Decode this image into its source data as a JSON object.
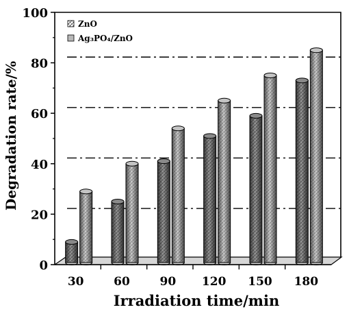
{
  "chart_data": {
    "type": "bar",
    "categories": [
      "30",
      "60",
      "90",
      "120",
      "150",
      "180"
    ],
    "series": [
      {
        "name": "ZnO",
        "values": [
          9,
          25,
          41,
          51,
          59,
          73
        ]
      },
      {
        "name": "Ag₃PO₄/ZnO",
        "values": [
          29,
          40,
          54,
          65,
          75,
          85
        ]
      }
    ],
    "xlabel": "Irradiation time/min",
    "ylabel": "Degradation rate/%",
    "ylim": [
      0,
      100
    ],
    "yticks": [
      "0",
      "20",
      "40",
      "60",
      "80",
      "100"
    ],
    "grid_dashdot_values": [
      22,
      42,
      62,
      82
    ],
    "legend_position": "top-left",
    "colors": {
      "zno": "#7a7a7a",
      "ag3po4_zno": "#a8a8a8",
      "floor": "#d8d8d8"
    }
  }
}
